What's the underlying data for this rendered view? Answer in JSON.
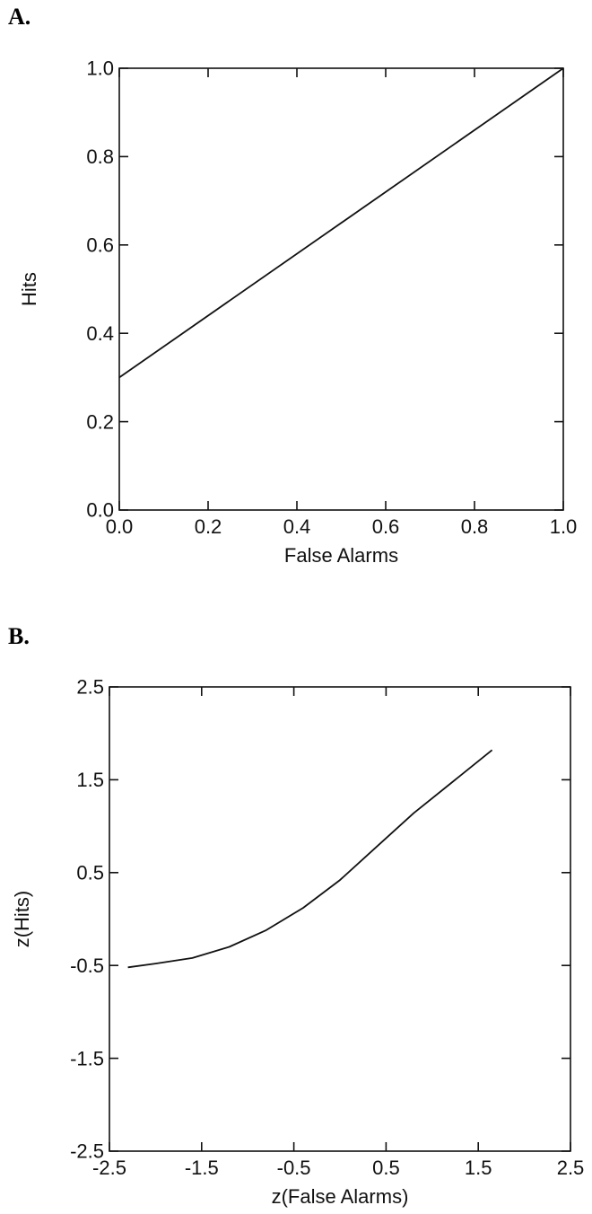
{
  "chart_data": [
    {
      "type": "line",
      "panel_label": "A.",
      "xlabel": "False Alarms",
      "ylabel": "Hits",
      "xlim": [
        0.0,
        1.0
      ],
      "ylim": [
        0.0,
        1.0
      ],
      "xticks": [
        "0.0",
        "0.2",
        "0.4",
        "0.6",
        "0.8",
        "1.0"
      ],
      "yticks": [
        "0.0",
        "0.2",
        "0.4",
        "0.6",
        "0.8",
        "1.0"
      ],
      "grid": false,
      "series": [
        {
          "x": [
            0.0,
            1.0
          ],
          "y": [
            0.3,
            1.0
          ]
        }
      ]
    },
    {
      "type": "line",
      "panel_label": "B.",
      "xlabel": "z(False Alarms)",
      "ylabel": "z(Hits)",
      "xlim": [
        -2.5,
        2.5
      ],
      "ylim": [
        -2.5,
        2.5
      ],
      "xticks": [
        "-2.5",
        "-1.5",
        "-0.5",
        "0.5",
        "1.5",
        "2.5"
      ],
      "yticks": [
        "-2.5",
        "-1.5",
        "-0.5",
        "0.5",
        "1.5",
        "2.5"
      ],
      "grid": false,
      "series": [
        {
          "x": [
            -2.3,
            -2.0,
            -1.6,
            -1.2,
            -0.8,
            -0.4,
            0.0,
            0.4,
            0.8,
            1.2,
            1.65
          ],
          "y": [
            -0.52,
            -0.48,
            -0.42,
            -0.3,
            -0.12,
            0.12,
            0.42,
            0.78,
            1.14,
            1.46,
            1.82
          ]
        }
      ]
    }
  ]
}
